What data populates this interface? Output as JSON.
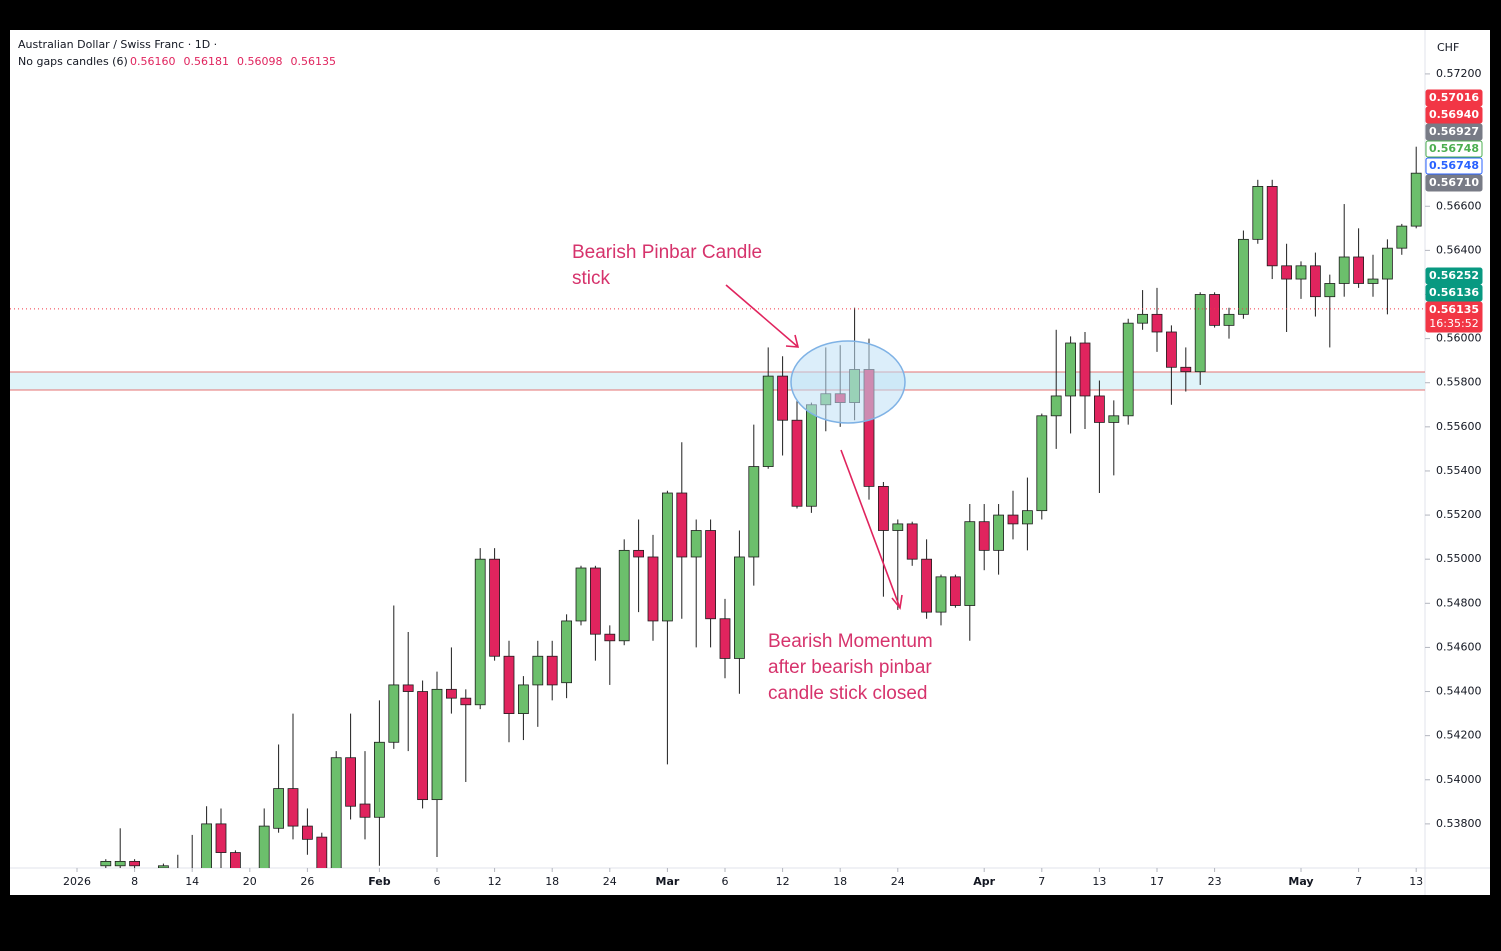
{
  "chart_data": {
    "type": "candlestick",
    "title": "Australian Dollar / Swiss Franc · 1D ·",
    "indicator": {
      "name": "No gaps candles (6)",
      "color": "#e0245e",
      "values": [
        {
          "value": 0.5616,
          "label": "0.56160"
        },
        {
          "value": 0.56181,
          "label": "0.56181"
        },
        {
          "value": 0.56098,
          "label": "0.56098"
        },
        {
          "value": 0.56135,
          "label": "0.56135"
        }
      ]
    },
    "currency": "CHF",
    "annotations": [
      {
        "lines": [
          "Bearish Pinbar Candle",
          "stick"
        ]
      },
      {
        "lines": [
          "Bearish Momentum",
          "after bearish pinbar",
          "candle stick closed"
        ]
      }
    ],
    "up_color": "#6cbf6c",
    "down_color": "#e0245e",
    "categories": [
      "2026-01-02",
      "2026-01-05",
      "2026-01-06",
      "2026-01-07",
      "2026-01-08",
      "2026-01-09",
      "2026-01-12",
      "2026-01-13",
      "2026-01-14",
      "2026-01-15",
      "2026-01-16",
      "2026-01-19",
      "2026-01-20",
      "2026-01-21",
      "2026-01-22",
      "2026-01-23",
      "2026-01-26",
      "2026-01-27",
      "2026-01-28",
      "2026-01-29",
      "2026-01-30",
      "2026-02-02",
      "2026-02-03",
      "2026-02-04",
      "2026-02-05",
      "2026-02-06",
      "2026-02-09",
      "2026-02-10",
      "2026-02-11",
      "2026-02-12",
      "2026-02-13",
      "2026-02-16",
      "2026-02-17",
      "2026-02-18",
      "2026-02-19",
      "2026-02-20",
      "2026-02-23",
      "2026-02-24",
      "2026-02-25",
      "2026-02-26",
      "2026-02-27",
      "2026-03-02",
      "2026-03-03",
      "2026-03-04",
      "2026-03-05",
      "2026-03-06",
      "2026-03-09",
      "2026-03-10",
      "2026-03-11",
      "2026-03-12",
      "2026-03-13",
      "2026-03-16",
      "2026-03-17",
      "2026-03-18",
      "2026-03-19",
      "2026-03-20",
      "2026-03-23",
      "2026-03-24",
      "2026-03-25",
      "2026-03-26",
      "2026-03-27",
      "2026-03-30",
      "2026-03-31",
      "2026-04-01",
      "2026-04-02",
      "2026-04-03",
      "2026-04-06",
      "2026-04-07",
      "2026-04-08",
      "2026-04-09",
      "2026-04-10",
      "2026-04-13",
      "2026-04-14",
      "2026-04-15",
      "2026-04-16",
      "2026-04-17",
      "2026-04-20",
      "2026-04-21",
      "2026-04-22",
      "2026-04-23",
      "2026-04-24",
      "2026-04-27",
      "2026-04-28",
      "2026-04-29",
      "2026-04-30",
      "2026-05-01",
      "2026-05-04",
      "2026-05-05",
      "2026-05-06",
      "2026-05-07",
      "2026-05-08",
      "2026-05-11",
      "2026-05-12",
      "2026-05-13"
    ],
    "open": [
      null,
      null,
      0.5361,
      0.5361,
      0.5363,
      null,
      0.536,
      0.5357,
      0.5356,
      0.5358,
      0.538,
      0.5367,
      null,
      0.5357,
      0.5378,
      0.5396,
      0.5379,
      0.5374,
      0.5358,
      0.541,
      0.5389,
      0.5383,
      0.5417,
      0.5443,
      0.544,
      0.5391,
      0.5441,
      0.5437,
      0.5434,
      0.55,
      0.5456,
      0.543,
      0.5443,
      0.5456,
      0.5444,
      0.5472,
      0.5496,
      0.5466,
      0.5463,
      0.5504,
      0.5501,
      0.5472,
      0.553,
      0.5501,
      0.5513,
      0.5473,
      0.5455,
      0.5501,
      0.5542,
      0.5583,
      0.5563,
      0.5524,
      0.557,
      0.5575,
      0.5571,
      0.5586,
      0.5533,
      0.5513,
      0.5516,
      0.55,
      0.5476,
      0.5492,
      0.5479,
      0.5517,
      0.5504,
      0.552,
      0.5516,
      0.5522,
      0.5565,
      0.5574,
      0.5598,
      0.5574,
      0.5562,
      0.5565,
      0.5607,
      0.5611,
      0.5603,
      0.5587,
      0.5585,
      0.562,
      0.5606,
      0.5611,
      0.5645,
      0.5669,
      0.5633,
      0.5627,
      0.5633,
      0.5619,
      0.5625,
      0.5637,
      0.5625,
      0.5627,
      0.5641,
      0.5651
    ],
    "high": [
      null,
      null,
      0.5364,
      0.5378,
      0.5364,
      null,
      0.5362,
      0.5366,
      0.5375,
      0.5388,
      0.5387,
      0.5368,
      null,
      0.5387,
      0.5416,
      0.543,
      0.5387,
      0.5376,
      0.5413,
      0.543,
      0.5413,
      0.5436,
      0.5479,
      0.5467,
      0.5445,
      0.5449,
      0.546,
      0.5441,
      0.5505,
      0.5505,
      0.5463,
      0.5447,
      0.5463,
      0.5463,
      0.5475,
      0.5497,
      0.5497,
      0.547,
      0.5509,
      0.5518,
      0.5511,
      0.5531,
      0.5553,
      0.5518,
      0.5518,
      0.5482,
      0.5513,
      0.5561,
      0.5596,
      0.5592,
      0.5572,
      0.5571,
      0.5596,
      0.5597,
      0.5614,
      0.56,
      0.5535,
      0.5518,
      0.5517,
      0.5509,
      0.5493,
      0.5493,
      0.5525,
      0.5525,
      0.5525,
      0.5531,
      0.5537,
      0.5566,
      0.5604,
      0.5601,
      0.5603,
      0.5581,
      0.5572,
      0.5609,
      0.5622,
      0.5623,
      0.5606,
      0.5596,
      0.5621,
      0.5621,
      0.5614,
      0.5649,
      0.5672,
      0.5672,
      0.5643,
      0.5635,
      0.5639,
      0.5629,
      0.5661,
      0.565,
      0.5638,
      0.5645,
      0.5652,
      0.5687
    ],
    "low": [
      null,
      null,
      0.5359,
      0.5358,
      0.5358,
      null,
      0.5355,
      0.535,
      0.535,
      0.5352,
      0.536,
      0.5352,
      null,
      0.5352,
      0.5376,
      0.5373,
      0.5366,
      0.5352,
      0.5352,
      0.5382,
      0.5373,
      0.5361,
      0.5414,
      0.5413,
      0.5387,
      0.5365,
      0.543,
      0.5399,
      0.5432,
      0.5454,
      0.5417,
      0.5418,
      0.5424,
      0.5436,
      0.5437,
      0.547,
      0.5454,
      0.5443,
      0.5461,
      0.5476,
      0.5463,
      0.5407,
      0.5473,
      0.546,
      0.546,
      0.5446,
      0.5439,
      0.5488,
      0.5541,
      0.5547,
      0.5523,
      0.5521,
      0.5558,
      0.556,
      0.5563,
      0.5527,
      0.5483,
      0.5477,
      0.5497,
      0.5473,
      0.547,
      0.5478,
      0.5463,
      0.5495,
      0.5493,
      0.5509,
      0.5504,
      0.5518,
      0.555,
      0.5557,
      0.5559,
      0.553,
      0.5538,
      0.5561,
      0.5604,
      0.5594,
      0.557,
      0.5576,
      0.5579,
      0.5605,
      0.56,
      0.5609,
      0.5643,
      0.5627,
      0.5603,
      0.5618,
      0.561,
      0.5596,
      0.5619,
      0.5623,
      0.5619,
      0.5611,
      0.5638,
      0.565
    ],
    "close": [
      null,
      null,
      0.5363,
      0.5363,
      0.5361,
      null,
      0.5361,
      0.5355,
      0.5358,
      0.538,
      0.5367,
      0.5356,
      null,
      0.5379,
      0.5396,
      0.5379,
      0.5373,
      0.5358,
      0.541,
      0.5388,
      0.5383,
      0.5417,
      0.5443,
      0.544,
      0.5391,
      0.5441,
      0.5437,
      0.5434,
      0.55,
      0.5456,
      0.543,
      0.5443,
      0.5456,
      0.5443,
      0.5472,
      0.5496,
      0.5466,
      0.5463,
      0.5504,
      0.5501,
      0.5472,
      0.553,
      0.5501,
      0.5513,
      0.5473,
      0.5455,
      0.5501,
      0.5542,
      0.5583,
      0.5563,
      0.5524,
      0.557,
      0.5575,
      0.5571,
      0.5586,
      0.5533,
      0.5513,
      0.5516,
      0.55,
      0.5476,
      0.5492,
      0.5479,
      0.5517,
      0.5504,
      0.552,
      0.5516,
      0.5522,
      0.5565,
      0.5574,
      0.5598,
      0.5574,
      0.5562,
      0.5565,
      0.5607,
      0.5611,
      0.5603,
      0.5587,
      0.5585,
      0.562,
      0.5606,
      0.5611,
      0.5645,
      0.5669,
      0.5633,
      0.5627,
      0.5633,
      0.5619,
      0.5625,
      0.5637,
      0.5625,
      0.5627,
      0.5641,
      0.5651,
      0.5675
    ],
    "ylim": [
      0.536,
      0.5739
    ],
    "yticks": [
      {
        "value": 0.538,
        "label": "0.53800"
      },
      {
        "value": 0.54,
        "label": "0.54000"
      },
      {
        "value": 0.542,
        "label": "0.54200"
      },
      {
        "value": 0.544,
        "label": "0.54400"
      },
      {
        "value": 0.546,
        "label": "0.54600"
      },
      {
        "value": 0.548,
        "label": "0.54800"
      },
      {
        "value": 0.55,
        "label": "0.55000"
      },
      {
        "value": 0.552,
        "label": "0.55200"
      },
      {
        "value": 0.554,
        "label": "0.55400"
      },
      {
        "value": 0.556,
        "label": "0.55600"
      },
      {
        "value": 0.558,
        "label": "0.55800"
      },
      {
        "value": 0.56,
        "label": "0.56000"
      },
      {
        "value": 0.562,
        "label": "0.56200"
      },
      {
        "value": 0.564,
        "label": "0.56400"
      },
      {
        "value": 0.566,
        "label": "0.56600"
      },
      {
        "value": 0.572,
        "label": "0.57200"
      }
    ],
    "xticks": [
      {
        "value": "2026-01-02",
        "label": "2026"
      },
      {
        "value": "2026-01-08",
        "label": "8"
      },
      {
        "value": "2026-01-14",
        "label": "14"
      },
      {
        "value": "2026-01-20",
        "label": "20"
      },
      {
        "value": "2026-01-26",
        "label": "26"
      },
      {
        "value": "2026-02-02",
        "label": "Feb"
      },
      {
        "value": "2026-02-06",
        "label": "6"
      },
      {
        "value": "2026-02-12",
        "label": "12"
      },
      {
        "value": "2026-02-18",
        "label": "18"
      },
      {
        "value": "2026-02-24",
        "label": "24"
      },
      {
        "value": "2026-03-02",
        "label": "Mar"
      },
      {
        "value": "2026-03-06",
        "label": "6"
      },
      {
        "value": "2026-03-12",
        "label": "12"
      },
      {
        "value": "2026-03-18",
        "label": "18"
      },
      {
        "value": "2026-03-24",
        "label": "24"
      },
      {
        "value": "2026-04-01",
        "label": "Apr"
      },
      {
        "value": "2026-04-07",
        "label": "7"
      },
      {
        "value": "2026-04-13",
        "label": "13"
      },
      {
        "value": "2026-04-17",
        "label": "17"
      },
      {
        "value": "2026-04-23",
        "label": "23"
      },
      {
        "value": "2026-05-01",
        "label": "May"
      },
      {
        "value": "2026-05-07",
        "label": "7"
      },
      {
        "value": "2026-05-13",
        "label": "13"
      }
    ],
    "price_labels": [
      {
        "value": 0.57016,
        "label": "0.57016",
        "color": "#f23645",
        "style": "filled"
      },
      {
        "value": 0.5694,
        "label": "0.56940",
        "color": "#f23645",
        "style": "filled"
      },
      {
        "value": 0.56927,
        "label": "0.56927",
        "color": "#787b86",
        "style": "filled"
      },
      {
        "value": 0.56748,
        "label": "0.56748",
        "color": "#4caf50",
        "style": "outline"
      },
      {
        "value": 0.56748,
        "label": "0.56748",
        "color": "#2962ff",
        "style": "outline"
      },
      {
        "value": 0.5671,
        "label": "0.56710",
        "color": "#787b86",
        "style": "filled"
      },
      {
        "value": 0.56252,
        "label": "0.56252",
        "color": "#089981",
        "style": "filled"
      },
      {
        "value": 0.56136,
        "label": "0.56136",
        "color": "#089981",
        "style": "filled"
      },
      {
        "value": 0.56135,
        "label": "0.56135",
        "color": "#f23645",
        "style": "filled",
        "time": "16:35:52"
      }
    ]
  }
}
